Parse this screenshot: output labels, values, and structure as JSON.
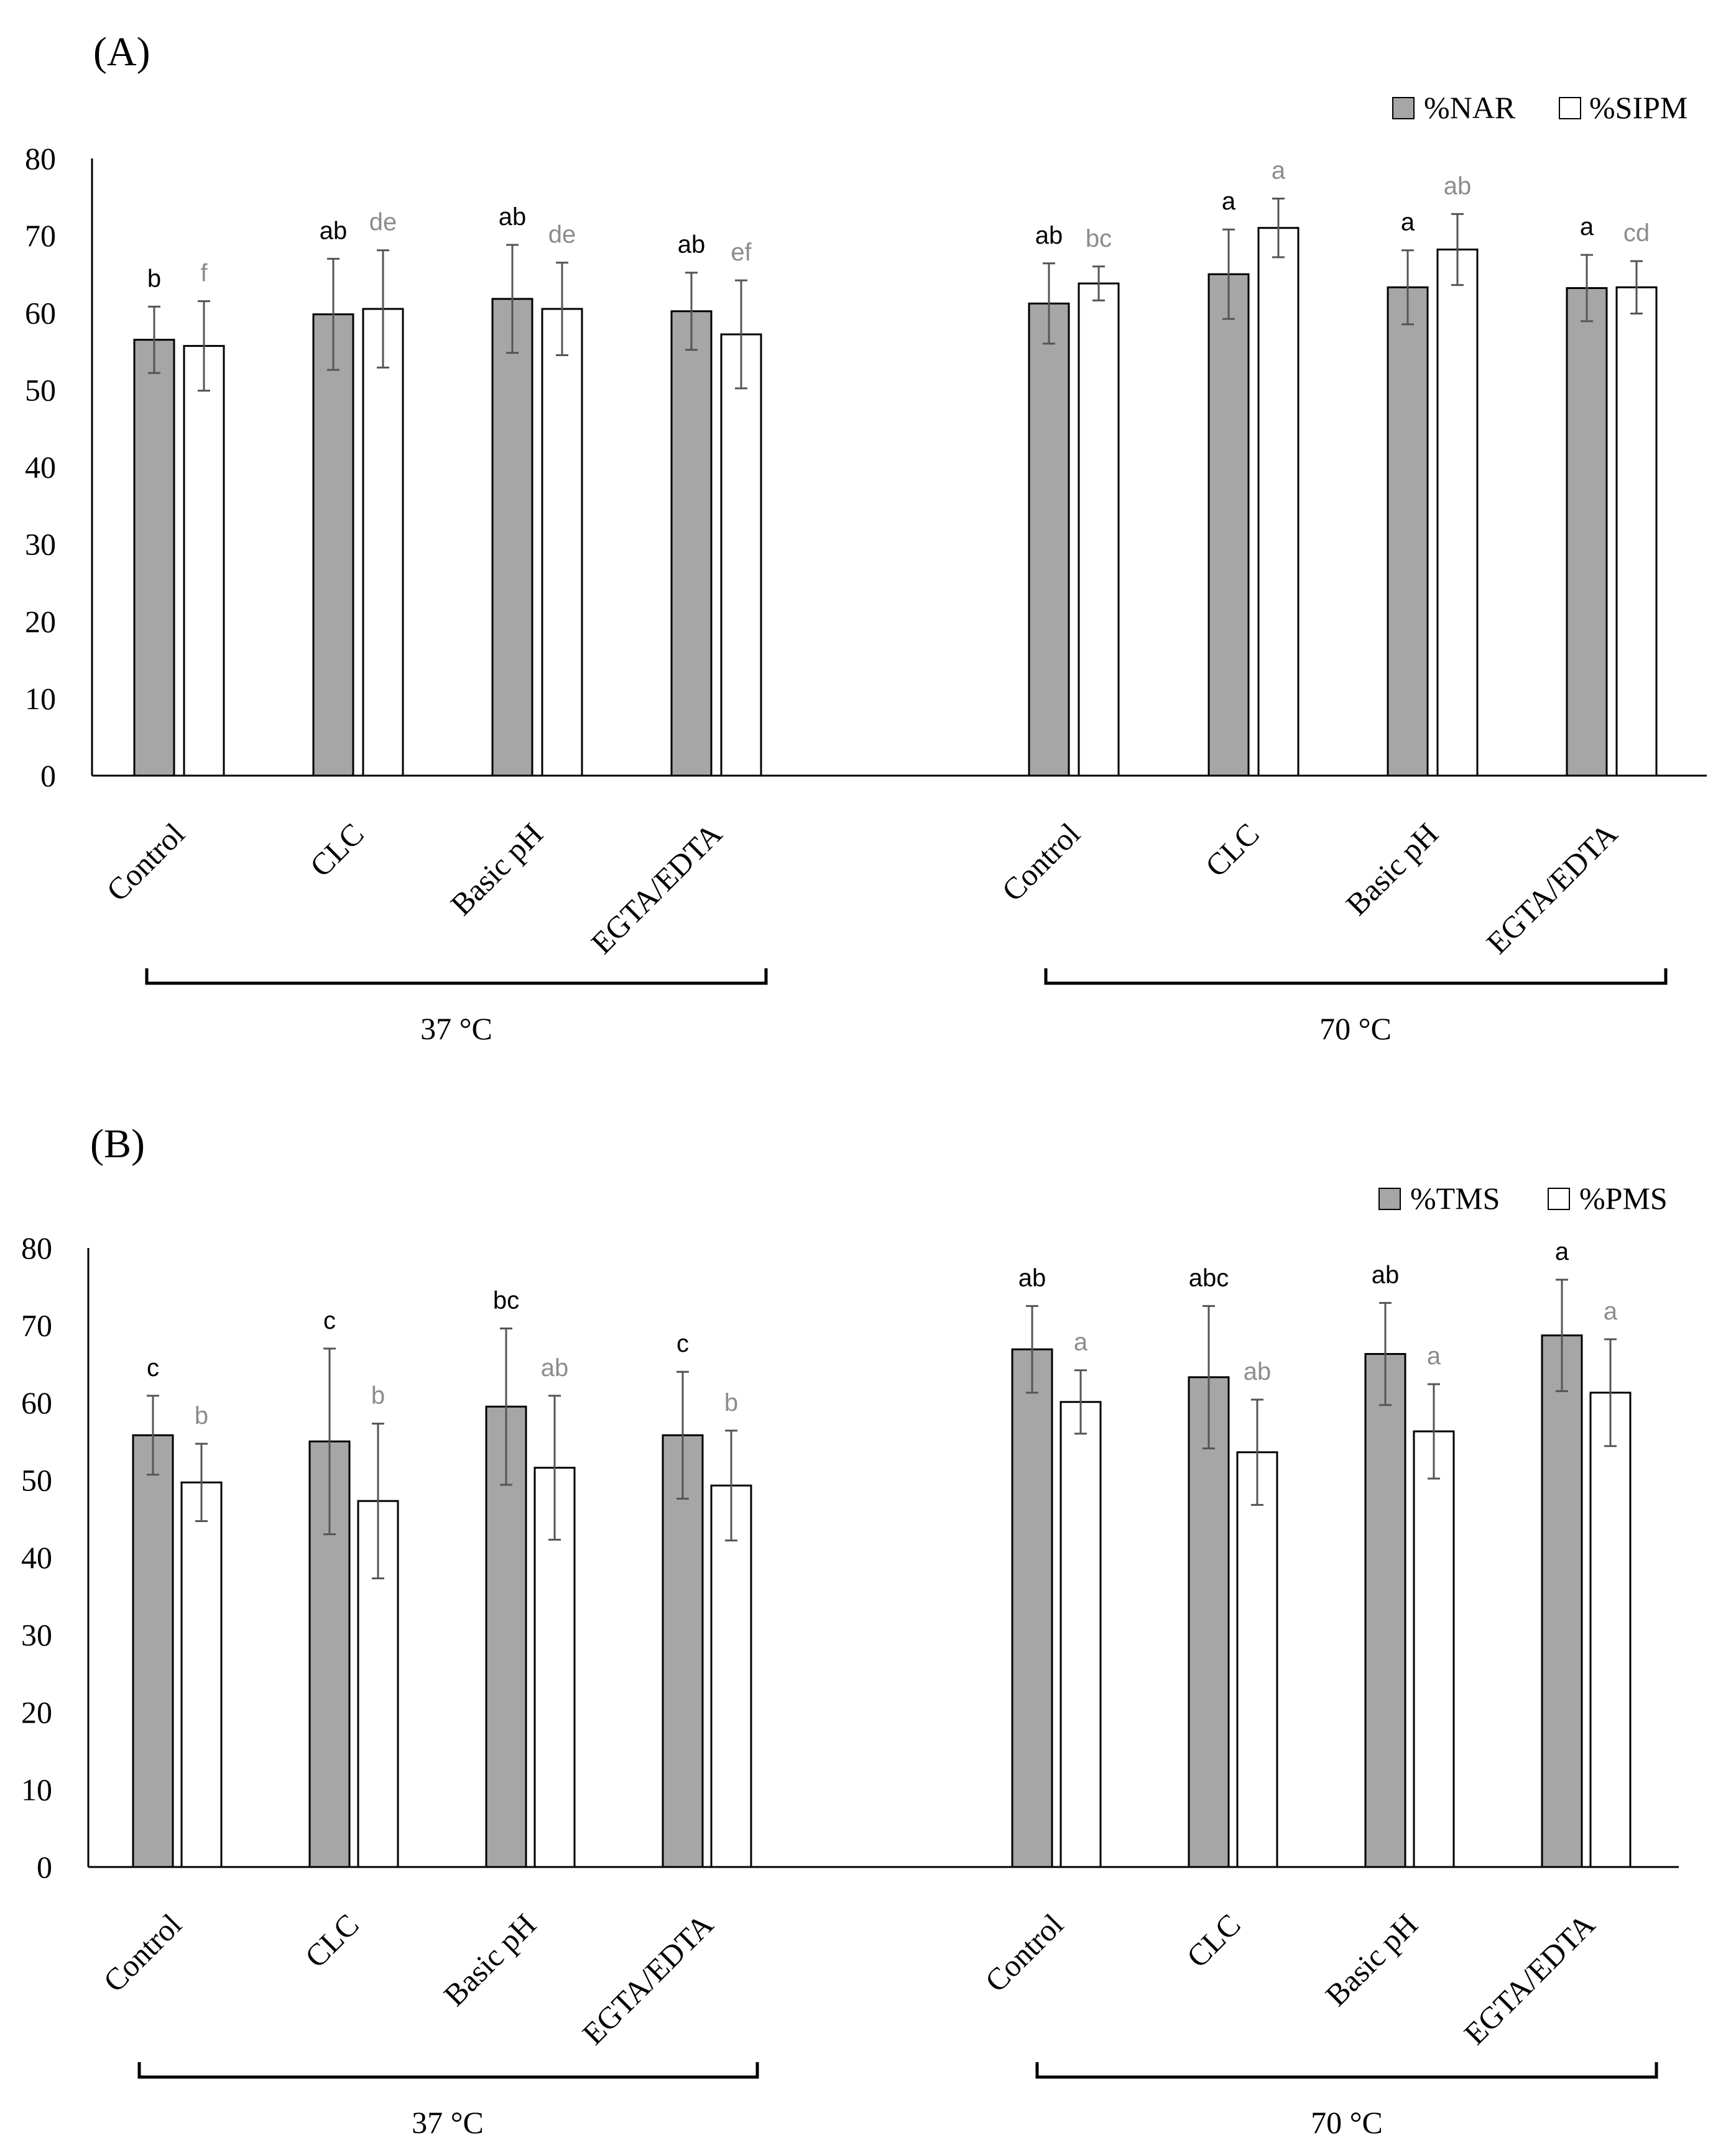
{
  "colors": {
    "gray_bar": "#a6a6a6",
    "white_bar": "#ffffff",
    "outline": "#000000",
    "sig_gray_bar": "#000000",
    "sig_white_bar": "#8c8c8c",
    "error_bar": "#555555"
  },
  "chart_data": [
    {
      "panel_label": "(A)",
      "type": "bar",
      "categories": [
        "Control",
        "CLC",
        "Basic pH",
        "EGTA/EDTA",
        "Control",
        "CLC",
        "Basic pH",
        "EGTA/EDTA"
      ],
      "groups": [
        {
          "label": "37 °C",
          "category_indices": [
            0,
            1,
            2,
            3
          ]
        },
        {
          "label": "70 °C",
          "category_indices": [
            4,
            5,
            6,
            7
          ]
        }
      ],
      "ylim": [
        0,
        80
      ],
      "yticks": [
        "0",
        "10",
        "20",
        "30",
        "40",
        "50",
        "60",
        "70",
        "80"
      ],
      "legend_position": "top-right",
      "series": [
        {
          "name": "%NAR",
          "fill": "gray",
          "values": [
            56.5,
            59.8,
            61.8,
            60.2,
            61.2,
            65.0,
            63.3,
            63.2
          ],
          "errors": [
            4.3,
            7.2,
            7.0,
            5.0,
            5.2,
            5.8,
            4.8,
            4.3
          ],
          "letters": [
            "b",
            "ab",
            "ab",
            "ab",
            "ab",
            "a",
            "a",
            "a"
          ]
        },
        {
          "name": "%SIPM",
          "fill": "white",
          "values": [
            55.7,
            60.5,
            60.5,
            57.2,
            63.8,
            71.0,
            68.2,
            63.3
          ],
          "errors": [
            5.8,
            7.6,
            6.0,
            7.0,
            2.2,
            3.8,
            4.6,
            3.4
          ],
          "letters": [
            "f",
            "de",
            "de",
            "ef",
            "bc",
            "a",
            "ab",
            "cd"
          ]
        }
      ]
    },
    {
      "panel_label": "(B)",
      "type": "bar",
      "categories": [
        "Control",
        "CLC",
        "Basic pH",
        "EGTA/EDTA",
        "Control",
        "CLC",
        "Basic pH",
        "EGTA/EDTA"
      ],
      "groups": [
        {
          "label": "37 °C",
          "category_indices": [
            0,
            1,
            2,
            3
          ]
        },
        {
          "label": "70 °C",
          "category_indices": [
            4,
            5,
            6,
            7
          ]
        }
      ],
      "ylim": [
        0,
        80
      ],
      "yticks": [
        "0",
        "10",
        "20",
        "30",
        "40",
        "50",
        "60",
        "70",
        "80"
      ],
      "legend_position": "top-right",
      "series": [
        {
          "name": "%TMS",
          "fill": "gray",
          "values": [
            55.8,
            55.0,
            59.5,
            55.8,
            66.9,
            63.3,
            66.3,
            68.7
          ],
          "errors": [
            5.1,
            12.0,
            10.1,
            8.2,
            5.6,
            9.2,
            6.6,
            7.2
          ],
          "letters": [
            "c",
            "c",
            "bc",
            "c",
            "ab",
            "abc",
            "ab",
            "a"
          ]
        },
        {
          "name": "%PMS",
          "fill": "white",
          "values": [
            49.7,
            47.3,
            51.6,
            49.3,
            60.1,
            53.6,
            56.3,
            61.3
          ],
          "errors": [
            5.0,
            10.0,
            9.3,
            7.1,
            4.1,
            6.8,
            6.1,
            6.9
          ],
          "letters": [
            "b",
            "b",
            "ab",
            "b",
            "a",
            "ab",
            "a",
            "a"
          ]
        }
      ]
    }
  ]
}
